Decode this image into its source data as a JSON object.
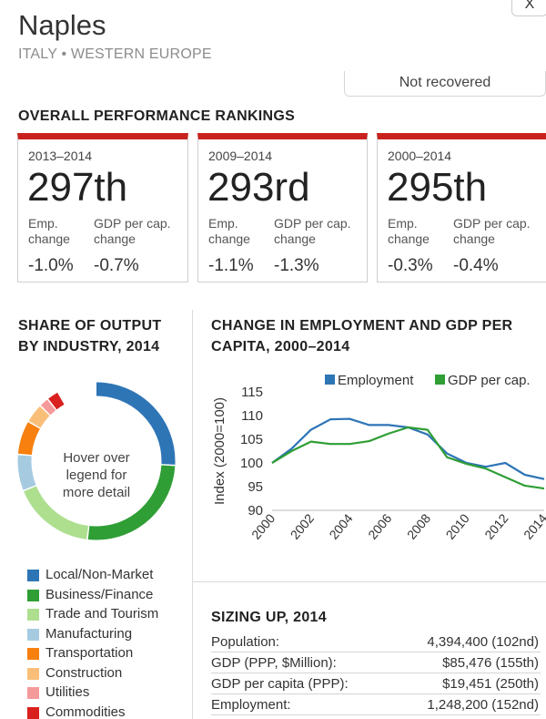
{
  "header": {
    "city": "Naples",
    "subtitle": "ITALY • WESTERN EUROPE",
    "close_label": "X",
    "status": "Not recovered"
  },
  "rankings": {
    "heading": "OVERALL PERFORMANCE RANKINGS",
    "emp_label_1": "Emp.",
    "emp_label_2": "change",
    "gdp_label_1": "GDP per cap.",
    "gdp_label_2": "change",
    "cards": [
      {
        "period": "2013–2014",
        "rank": "297th",
        "emp": "-1.0%",
        "gdp": "-0.7%"
      },
      {
        "period": "2009–2014",
        "rank": "293rd",
        "emp": "-1.1%",
        "gdp": "-1.3%"
      },
      {
        "period": "2000–2014",
        "rank": "295th",
        "emp": "-0.3%",
        "gdp": "-0.4%"
      }
    ],
    "accent_color": "#c9221e"
  },
  "share": {
    "heading_line1": "SHARE OF OUTPUT",
    "heading_line2": "BY INDUSTRY, 2014",
    "center_text": "Hover over legend for more detail",
    "legend": [
      {
        "label": "Local/Non-Market",
        "color": "#2e75b6"
      },
      {
        "label": "Business/Finance",
        "color": "#2f9e35"
      },
      {
        "label": "Trade and Tourism",
        "color": "#addf8f"
      },
      {
        "label": "Manufacturing",
        "color": "#a6cbe1"
      },
      {
        "label": "Transportation",
        "color": "#f7800f"
      },
      {
        "label": "Construction",
        "color": "#f9bf79"
      },
      {
        "label": "Utilities",
        "color": "#f59a9a"
      },
      {
        "label": "Commodities",
        "color": "#d9201e"
      }
    ]
  },
  "chart_data": {
    "type": "line",
    "title": "CHANGE IN EMPLOYMENT AND GDP PER CAPITA, 2000–2014",
    "title_line1": "CHANGE IN EMPLOYMENT AND GDP PER",
    "title_line2": "CAPITA, 2000–2014",
    "ylabel": "Index (2000=100)",
    "xlabel": "",
    "ylim": [
      90,
      115
    ],
    "yticks": [
      90,
      95,
      100,
      105,
      110,
      115
    ],
    "xticks": [
      2000,
      2002,
      2004,
      2006,
      2008,
      2010,
      2012,
      2014
    ],
    "x": [
      2000,
      2001,
      2002,
      2003,
      2004,
      2005,
      2006,
      2007,
      2008,
      2009,
      2010,
      2011,
      2012,
      2013,
      2014
    ],
    "series": [
      {
        "name": "Employment",
        "color": "#2e75b6",
        "values": [
          100,
          103,
          107,
          109.2,
          109.3,
          108,
          108,
          107.5,
          106,
          102,
          100,
          99.2,
          100,
          97.5,
          96.6
        ]
      },
      {
        "name": "GDP per cap.",
        "color": "#2f9e35",
        "values": [
          100,
          102.5,
          104.5,
          104,
          104,
          104.6,
          106.2,
          107.5,
          107,
          101.2,
          99.8,
          98.8,
          97,
          95.2,
          94.6
        ]
      }
    ]
  },
  "sizing": {
    "heading": "SIZING UP, 2014",
    "rows": [
      {
        "label": "Population:",
        "value": "4,394,400 (102nd)"
      },
      {
        "label": "GDP (PPP, $Million):",
        "value": "$85,476 (155th)"
      },
      {
        "label": "GDP per capita (PPP):",
        "value": "$19,451 (250th)"
      },
      {
        "label": "Employment:",
        "value": "1,248,200 (152nd)"
      }
    ]
  }
}
